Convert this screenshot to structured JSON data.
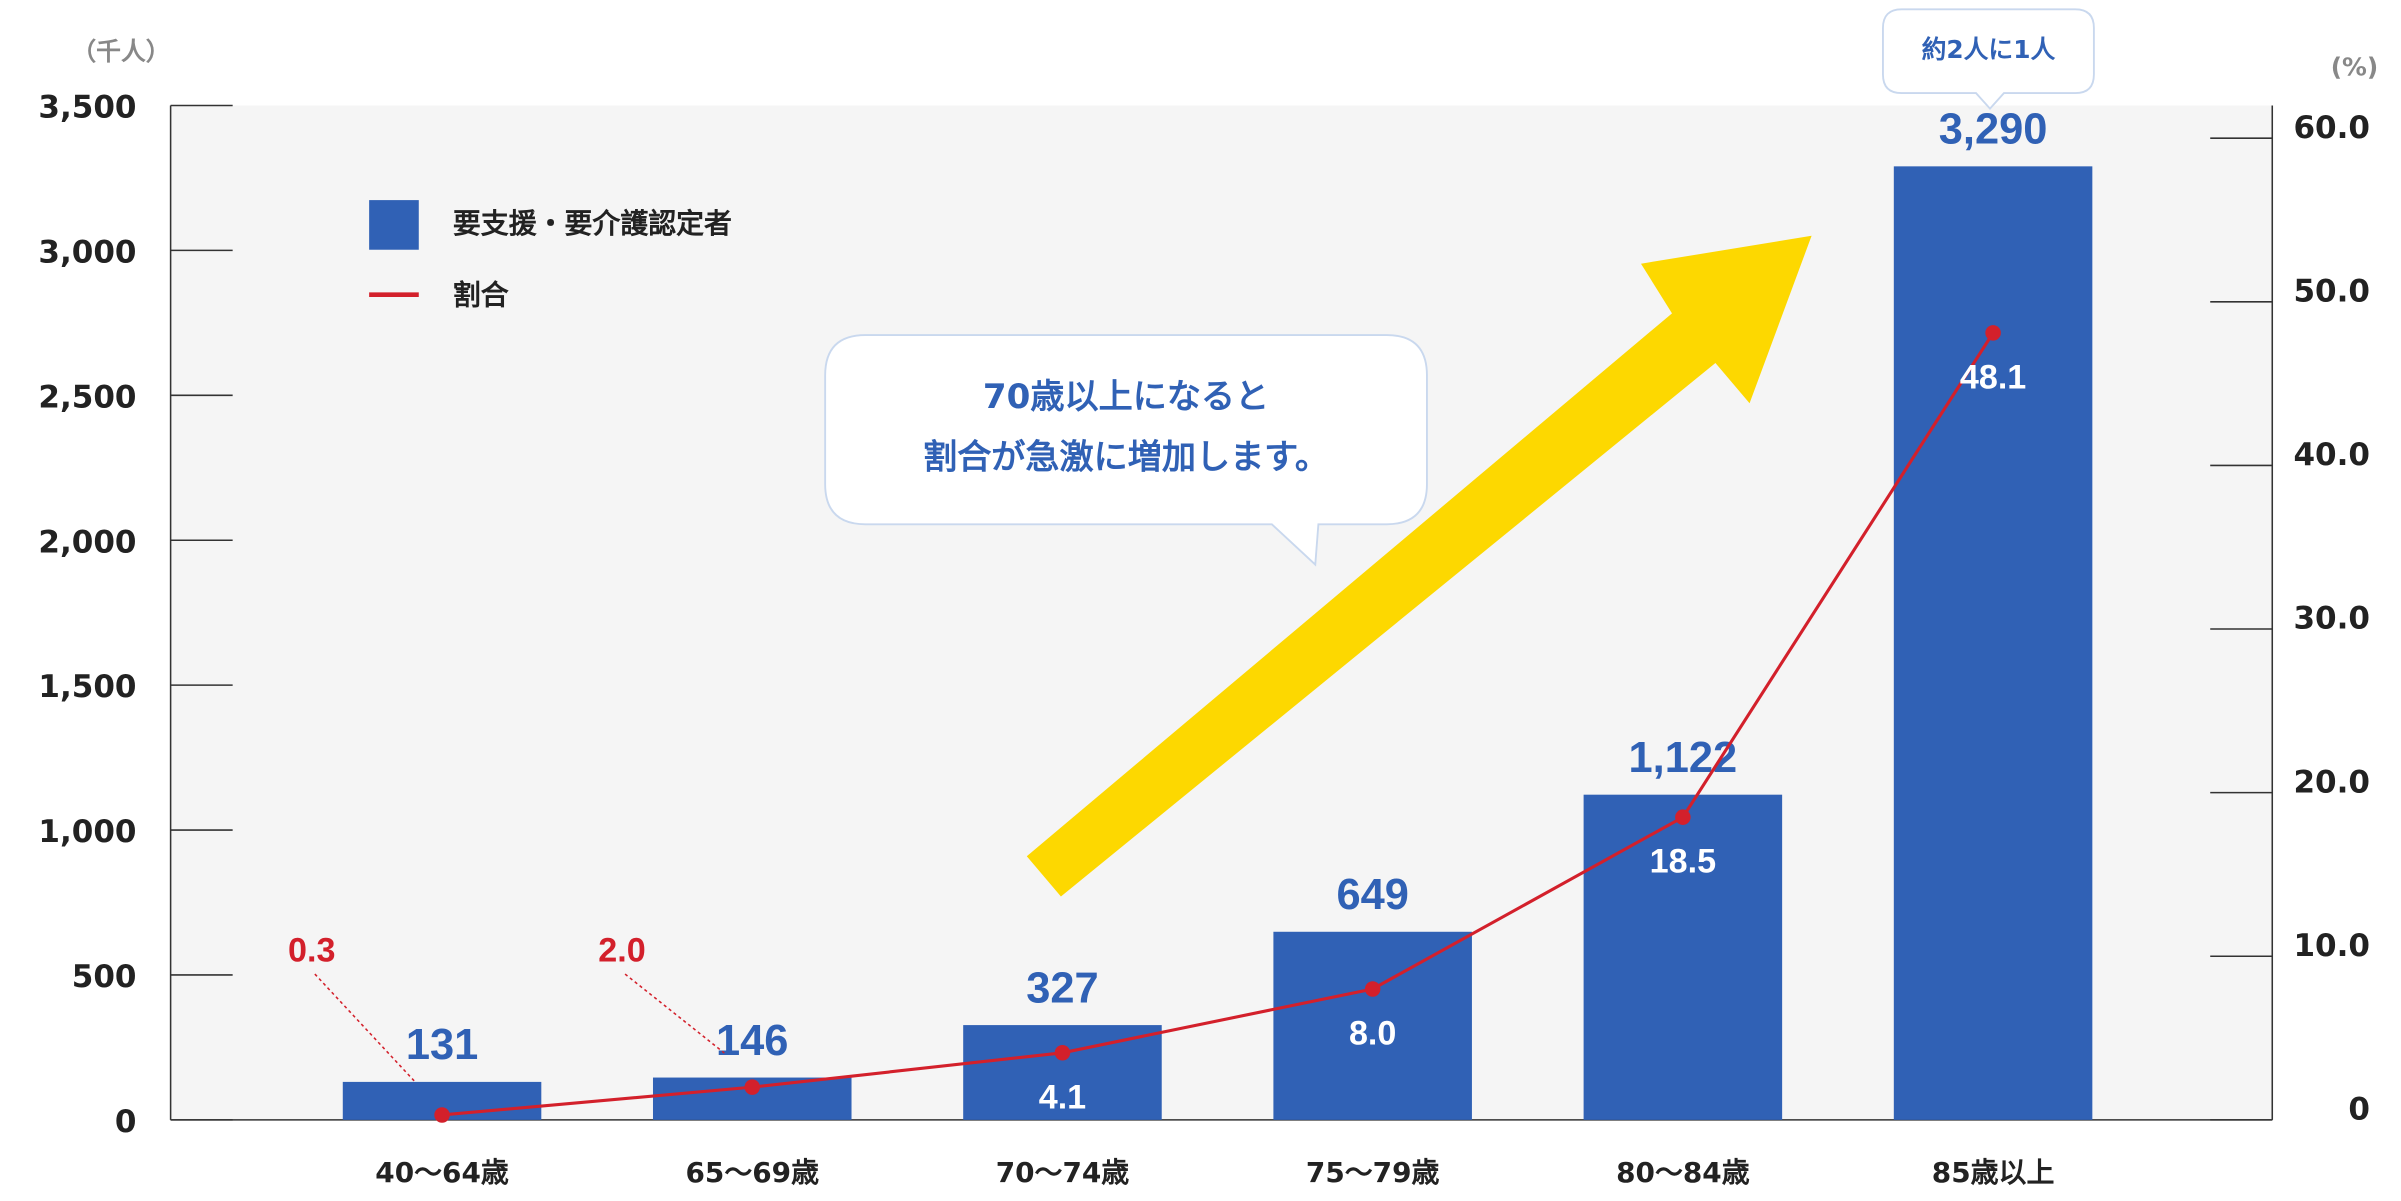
{
  "chart_data": {
    "type": "bar_line",
    "y_unit_label": "（千人）",
    "y2_unit_label": "(%)",
    "categories": [
      "40〜64歳",
      "65〜69歳",
      "70〜74歳",
      "75〜79歳",
      "80〜84歳",
      "85歳以上"
    ],
    "series": [
      {
        "name": "要支援・要介護認定者",
        "type": "bar",
        "color": "#3061b5",
        "values": [
          131,
          146,
          327,
          649,
          1122,
          3290
        ],
        "value_labels": [
          "131",
          "146",
          "327",
          "649",
          "1,122",
          "3,290"
        ]
      },
      {
        "name": "割合",
        "type": "line",
        "axis": "y2",
        "color": "#d3202b",
        "values": [
          0.3,
          2.0,
          4.1,
          8.0,
          18.5,
          48.1
        ],
        "value_labels": [
          "0.3",
          "2.0",
          "4.1",
          "8.0",
          "18.5",
          "48.1"
        ]
      }
    ],
    "ylim": [
      0,
      3500
    ],
    "yticks": [
      0,
      500,
      {
        "value": 1000,
        "label": "1,000"
      },
      {
        "value": 1500,
        "label": "1,500"
      },
      {
        "value": 2000,
        "label": "2,000"
      },
      {
        "value": 2500,
        "label": "2,500"
      },
      {
        "value": 3000,
        "label": "3,000"
      },
      {
        "value": 3500,
        "label": "3,500"
      }
    ],
    "y2lim": [
      0,
      62
    ],
    "y2ticks": [
      0,
      {
        "value": 10,
        "label": "10.0"
      },
      {
        "value": 20,
        "label": "20.0"
      },
      {
        "value": 30,
        "label": "30.0"
      },
      {
        "value": 40,
        "label": "40.0"
      },
      {
        "value": 50,
        "label": "50.0"
      },
      {
        "value": 60,
        "label": "60.0"
      }
    ],
    "annotations": [
      "約2人に1人",
      "70歳以上になると",
      "割合が急激に増加します。"
    ]
  }
}
